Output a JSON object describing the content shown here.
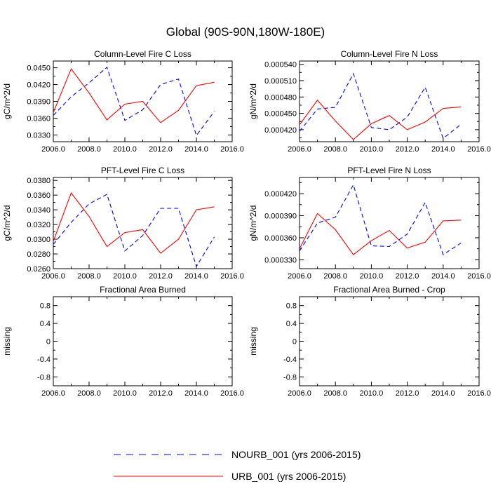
{
  "page": {
    "title": "Global (90S-90N,180W-180E)"
  },
  "legend": [
    {
      "label": "NOURB_001 (yrs 2006-2015)",
      "color": "#0000ff",
      "dash": "dashed"
    },
    {
      "label": "URB_001 (yrs 2006-2015)",
      "color": "#ff0000",
      "dash": "solid"
    }
  ],
  "chart_data": [
    {
      "type": "line",
      "title": "Column-Level Fire C Loss",
      "ylabel": "gC/m^2/d",
      "xlim": [
        2006,
        2016
      ],
      "ylim": [
        0.0318,
        0.0462
      ],
      "xticks": [
        2006,
        2008,
        2010,
        2012,
        2014,
        2016
      ],
      "xtick_labels": [
        "2006.0",
        "2008.0",
        "2010.0",
        "2012.0",
        "2014.0",
        "2016.0"
      ],
      "yticks": [
        0.033,
        0.036,
        0.039,
        0.042,
        0.045
      ],
      "ytick_labels": [
        "0.0330",
        "0.0360",
        "0.0390",
        "0.0420",
        "0.0450"
      ],
      "x": [
        2006,
        2007,
        2008,
        2009,
        2010,
        2011,
        2012,
        2013,
        2014,
        2015
      ],
      "series": [
        {
          "name": "NOURB_001 (yrs 2006-2015)",
          "color": "#0000ff",
          "dash": "dashed",
          "values": [
            0.0365,
            0.0398,
            0.0423,
            0.0451,
            0.0356,
            0.0375,
            0.042,
            0.043,
            0.0329,
            0.0372
          ]
        },
        {
          "name": "URB_001 (yrs 2006-2015)",
          "color": "#ff0000",
          "dash": "solid",
          "values": [
            0.037,
            0.0448,
            0.0405,
            0.0357,
            0.0385,
            0.039,
            0.0352,
            0.0374,
            0.0418,
            0.0424
          ]
        }
      ]
    },
    {
      "type": "line",
      "title": "Column-Level Fire N Loss",
      "ylabel": "gN/m^2/d",
      "xlim": [
        2006,
        2016
      ],
      "ylim": [
        0.000398,
        0.000546
      ],
      "xticks": [
        2006,
        2008,
        2010,
        2012,
        2014,
        2016
      ],
      "xtick_labels": [
        "2006.0",
        "2008.0",
        "2010.0",
        "2012.0",
        "2014.0",
        "2016.0"
      ],
      "yticks": [
        0.00042,
        0.00045,
        0.00048,
        0.00051,
        0.00054
      ],
      "ytick_labels": [
        "0.000420",
        "0.000450",
        "0.000480",
        "0.000510",
        "0.000540"
      ],
      "x": [
        2006,
        2007,
        2008,
        2009,
        2010,
        2011,
        2012,
        2013,
        2014,
        2015
      ],
      "series": [
        {
          "name": "NOURB_001 (yrs 2006-2015)",
          "color": "#0000ff",
          "dash": "dashed",
          "values": [
            0.000417,
            0.000458,
            0.000461,
            0.000523,
            0.000424,
            0.00042,
            0.000443,
            0.000498,
            0.000404,
            0.00043
          ]
        },
        {
          "name": "URB_001 (yrs 2006-2015)",
          "color": "#ff0000",
          "dash": "solid",
          "values": [
            0.000429,
            0.000474,
            0.000436,
            0.000402,
            0.000431,
            0.000446,
            0.00042,
            0.000434,
            0.000459,
            0.000462
          ]
        }
      ]
    },
    {
      "type": "line",
      "title": "PFT-Level Fire C Loss",
      "ylabel": "gC/m^2/d",
      "xlim": [
        2006,
        2016
      ],
      "ylim": [
        0.026,
        0.0384
      ],
      "xticks": [
        2006,
        2008,
        2010,
        2012,
        2014,
        2016
      ],
      "xtick_labels": [
        "2006.0",
        "2008.0",
        "2010.0",
        "2012.0",
        "2014.0",
        "2016.0"
      ],
      "yticks": [
        0.026,
        0.028,
        0.03,
        0.032,
        0.034,
        0.036,
        0.038
      ],
      "ytick_labels": [
        "0.0260",
        "0.0280",
        "0.0300",
        "0.0320",
        "0.0340",
        "0.0360",
        "0.0380"
      ],
      "x": [
        2006,
        2007,
        2008,
        2009,
        2010,
        2011,
        2012,
        2013,
        2014,
        2015
      ],
      "series": [
        {
          "name": "NOURB_001 (yrs 2006-2015)",
          "color": "#0000ff",
          "dash": "dashed",
          "values": [
            0.0293,
            0.0323,
            0.0348,
            0.0361,
            0.0284,
            0.0305,
            0.0342,
            0.0342,
            0.0263,
            0.0303
          ]
        },
        {
          "name": "URB_001 (yrs 2006-2015)",
          "color": "#ff0000",
          "dash": "solid",
          "values": [
            0.0297,
            0.0363,
            0.0331,
            0.029,
            0.0309,
            0.0313,
            0.0281,
            0.03,
            0.034,
            0.0344
          ]
        }
      ]
    },
    {
      "type": "line",
      "title": "PFT-Level Fire N Loss",
      "ylabel": "gN/m^2/d",
      "xlim": [
        2006,
        2016
      ],
      "ylim": [
        0.000318,
        0.000442
      ],
      "xticks": [
        2006,
        2008,
        2010,
        2012,
        2014,
        2016
      ],
      "xtick_labels": [
        "2006.0",
        "2008.0",
        "2010.0",
        "2012.0",
        "2014.0",
        "2016.0"
      ],
      "yticks": [
        0.00033,
        0.00036,
        0.00039,
        0.00042
      ],
      "ytick_labels": [
        "0.000330",
        "0.000360",
        "0.000390",
        "0.000420"
      ],
      "x": [
        2006,
        2007,
        2008,
        2009,
        2010,
        2011,
        2012,
        2013,
        2014,
        2015
      ],
      "series": [
        {
          "name": "NOURB_001 (yrs 2006-2015)",
          "color": "#0000ff",
          "dash": "dashed",
          "values": [
            0.000342,
            0.00038,
            0.000388,
            0.000432,
            0.000349,
            0.000348,
            0.000365,
            0.000408,
            0.000337,
            0.000353
          ]
        },
        {
          "name": "URB_001 (yrs 2006-2015)",
          "color": "#ff0000",
          "dash": "solid",
          "values": [
            0.000345,
            0.000393,
            0.000371,
            0.000337,
            0.000356,
            0.00037,
            0.000346,
            0.000354,
            0.000383,
            0.000384
          ]
        }
      ]
    },
    {
      "type": "line",
      "title": "Fractional Area Burned",
      "ylabel": "missing",
      "xlim": [
        2006,
        2016
      ],
      "ylim": [
        -1.0,
        1.0
      ],
      "xticks": [
        2006,
        2008,
        2010,
        2012,
        2014,
        2016
      ],
      "xtick_labels": [
        "2006.0",
        "2008.0",
        "2010.0",
        "2012.0",
        "2014.0",
        "2016.0"
      ],
      "yticks": [
        -0.8,
        -0.4,
        0.0,
        0.4,
        0.8
      ],
      "ytick_labels": [
        "-0.8",
        "-0.4",
        "0",
        "0.4",
        "0.8"
      ],
      "x": [],
      "series": []
    },
    {
      "type": "line",
      "title": "Fractional Area Burned - Crop",
      "ylabel": "missing",
      "xlim": [
        2006,
        2016
      ],
      "ylim": [
        -1.0,
        1.0
      ],
      "xticks": [
        2006,
        2008,
        2010,
        2012,
        2014,
        2016
      ],
      "xtick_labels": [
        "2006.0",
        "2008.0",
        "2010.0",
        "2012.0",
        "2014.0",
        "2016.0"
      ],
      "yticks": [
        -0.8,
        -0.4,
        0.0,
        0.4,
        0.8
      ],
      "ytick_labels": [
        "-0.8",
        "-0.4",
        "0",
        "0.4",
        "0.8"
      ],
      "x": [],
      "series": []
    }
  ]
}
